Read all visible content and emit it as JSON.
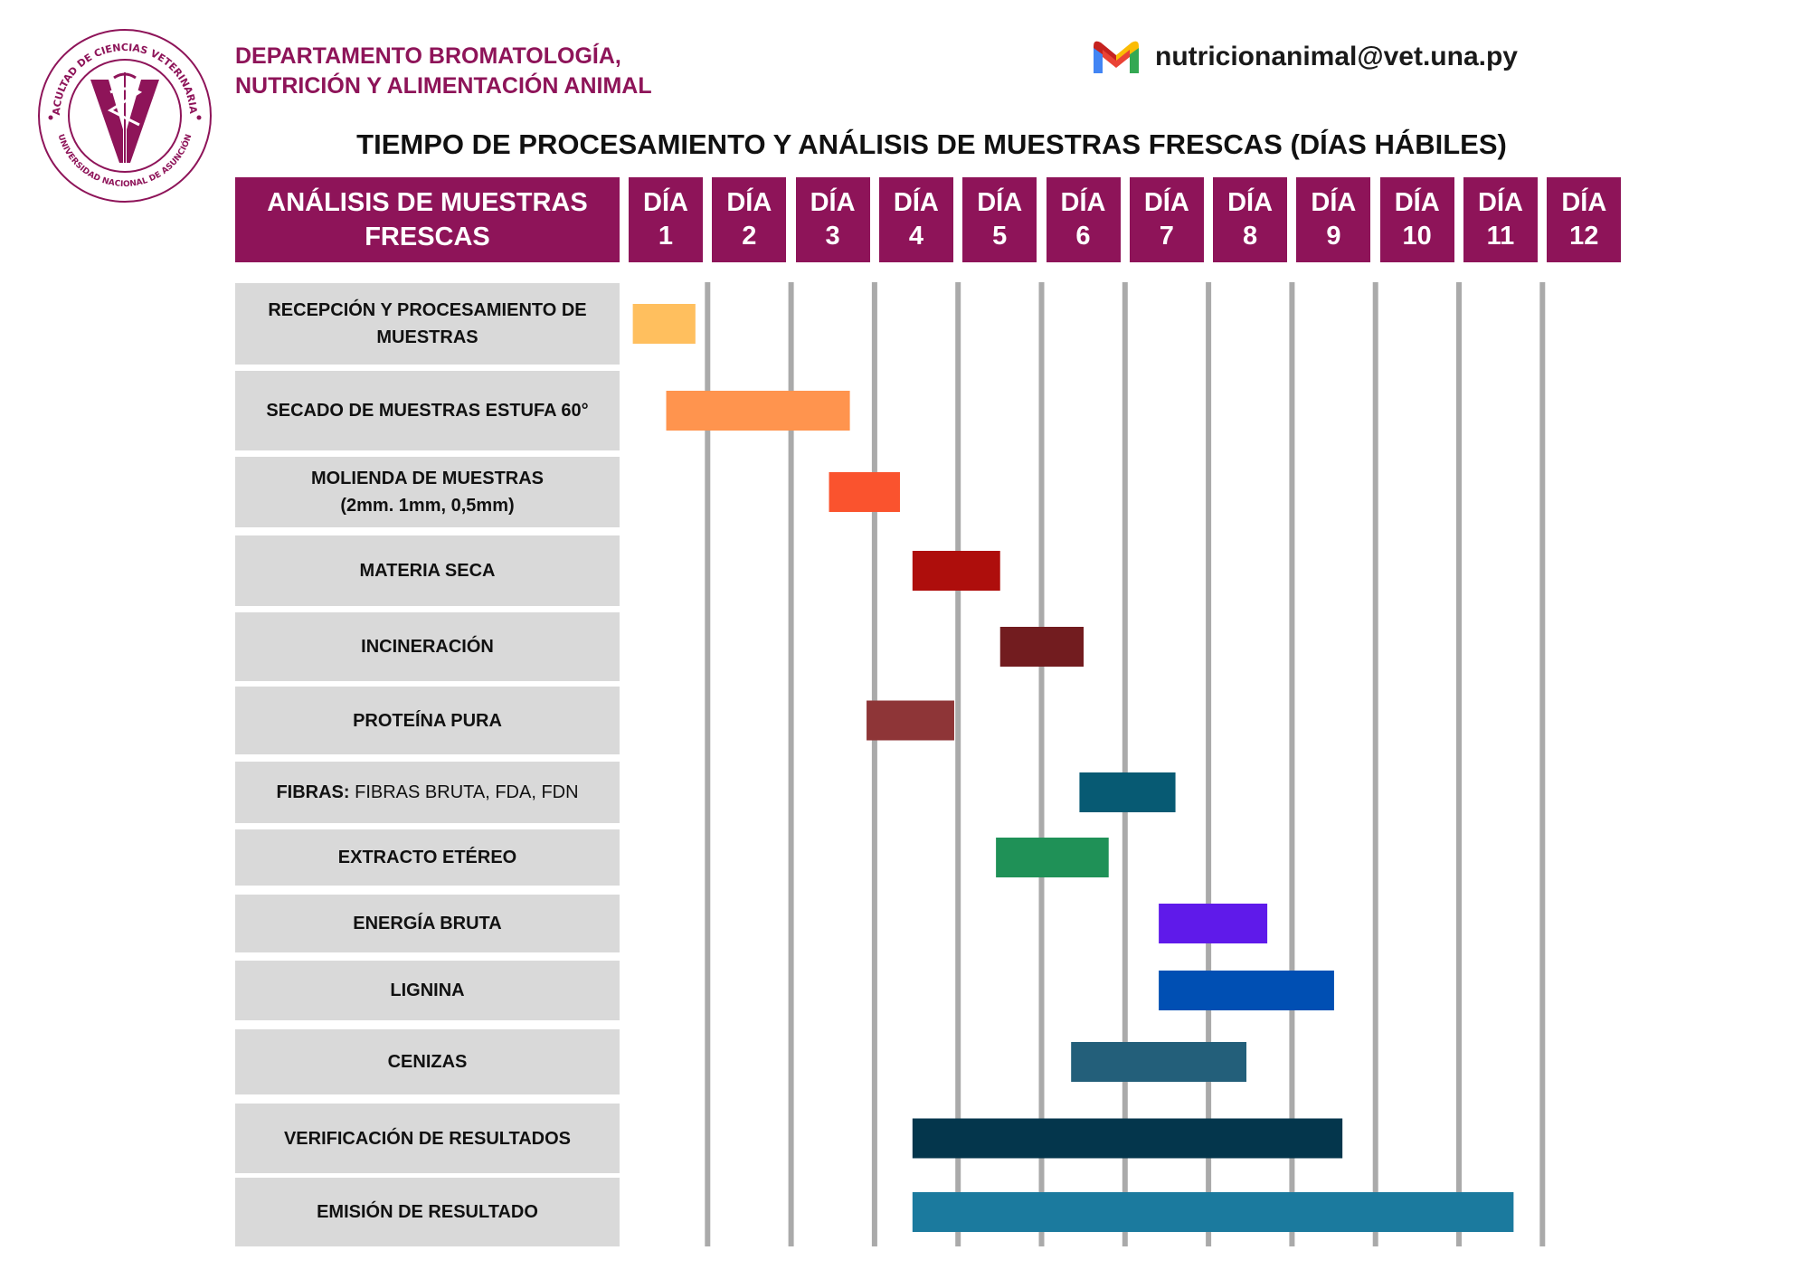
{
  "header": {
    "department_line1": "DEPARTAMENTO BROMATOLOGÍA,",
    "department_line2": "NUTRICIÓN Y ALIMENTACIÓN ANIMAL",
    "email": "nutricionanimal@vet.una.py",
    "email_icon": "gmail-icon",
    "logo": {
      "name": "faculty-seal-logo",
      "outer_text": "FACULTAD DE CIENCIAS VETERINARIAS",
      "inner_text": "UNIVERSIDAD NACIONAL DE ASUNCIÓN",
      "letter": "V"
    }
  },
  "colors": {
    "brand": "#8e1459",
    "label_bg": "#d9d9d9",
    "gridline": "#aaaaaa"
  },
  "chart_data": {
    "type": "gantt",
    "title": "TIEMPO DE PROCESAMIENTO Y ANÁLISIS DE MUESTRAS FRESCAS (DÍAS HÁBILES)",
    "header_label_line1": "ANÁLISIS DE MUESTRAS",
    "header_label_line2": "FRESCAS",
    "day_word": "DÍA",
    "days": [
      "1",
      "2",
      "3",
      "4",
      "5",
      "6",
      "7",
      "8",
      "9",
      "10",
      "11",
      "12"
    ],
    "grid": true,
    "tasks": [
      {
        "label": "RECEPCIÓN Y PROCESAMIENTO DE MUESTRAS",
        "start": 1.05,
        "end": 1.8,
        "color": "#ffbf5e"
      },
      {
        "label": "SECADO DE MUESTRAS ESTUFA 60°",
        "start": 1.45,
        "end": 3.65,
        "color": "#ff944e"
      },
      {
        "label": "MOLIENDA DE MUESTRAS",
        "label_line2": "(2mm. 1mm, 0,5mm)",
        "start": 3.4,
        "end": 4.25,
        "color": "#fa532e"
      },
      {
        "label": "MATERIA SECA",
        "start": 4.4,
        "end": 5.45,
        "color": "#ae0e0c"
      },
      {
        "label": "INCINERACIÓN",
        "start": 5.45,
        "end": 6.45,
        "color": "#721c1f"
      },
      {
        "label": "PROTEÍNA PURA",
        "start": 3.85,
        "end": 4.9,
        "color": "#8e3537"
      },
      {
        "label_bold": "FIBRAS:",
        "label_rest": "FIBRAS BRUTA, FDA, FDN",
        "start": 6.4,
        "end": 7.55,
        "color": "#075a73"
      },
      {
        "label": "EXTRACTO ETÉREO",
        "start": 5.4,
        "end": 6.75,
        "color": "#1f9157"
      },
      {
        "label": "ENERGÍA BRUTA",
        "start": 7.35,
        "end": 8.65,
        "color": "#5f1aea"
      },
      {
        "label": "LIGNINA",
        "start": 7.35,
        "end": 9.45,
        "color": "#004fb3"
      },
      {
        "label": "CENIZAS",
        "start": 6.3,
        "end": 8.4,
        "color": "#235f7a"
      },
      {
        "label": "VERIFICACIÓN DE RESULTADOS",
        "start": 4.4,
        "end": 9.55,
        "color": "#04364c"
      },
      {
        "label": "EMISIÓN DE RESULTADO",
        "start": 4.4,
        "end": 11.6,
        "color": "#1b7a9e"
      }
    ]
  }
}
